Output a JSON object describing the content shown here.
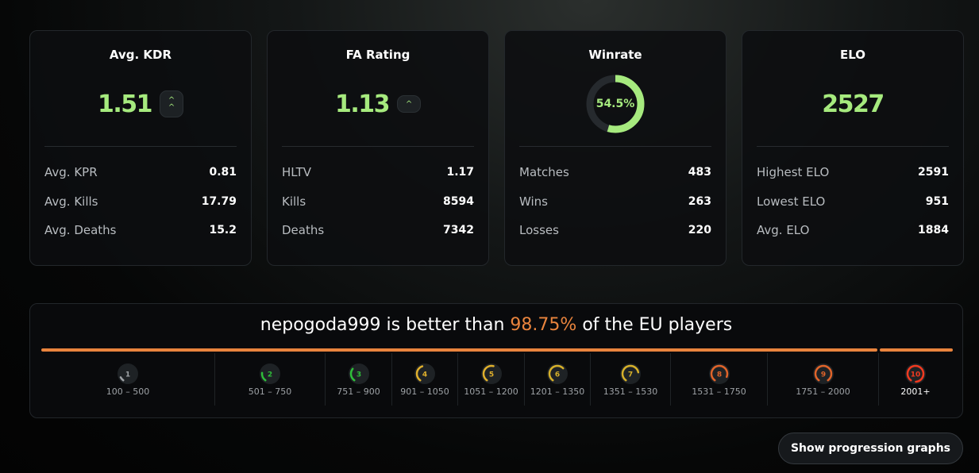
{
  "cards": [
    {
      "title": "Avg. KDR",
      "value": "1.51",
      "trend": "double-chevron-up-icon",
      "rows": [
        {
          "label": "Avg. KPR",
          "value": "0.81"
        },
        {
          "label": "Avg. Kills",
          "value": "17.79"
        },
        {
          "label": "Avg. Deaths",
          "value": "15.2"
        }
      ]
    },
    {
      "title": "FA Rating",
      "value": "1.13",
      "trend": "chevron-up-icon",
      "rows": [
        {
          "label": "HLTV",
          "value": "1.17"
        },
        {
          "label": "Kills",
          "value": "8594"
        },
        {
          "label": "Deaths",
          "value": "7342"
        }
      ]
    },
    {
      "title": "Winrate",
      "value": "54.5%",
      "winrate_percent": 54.5,
      "rows": [
        {
          "label": "Matches",
          "value": "483"
        },
        {
          "label": "Wins",
          "value": "263"
        },
        {
          "label": "Losses",
          "value": "220"
        }
      ]
    },
    {
      "title": "ELO",
      "value": "2527",
      "rows": [
        {
          "label": "Highest ELO",
          "value": "2591"
        },
        {
          "label": "Lowest ELO",
          "value": "951"
        },
        {
          "label": "Avg. ELO",
          "value": "1884"
        }
      ]
    }
  ],
  "ranking": {
    "player": "nepogoda999",
    "pre": "is better than",
    "percent": "98.75%",
    "post": "of the EU players",
    "accent": "#e9843d",
    "levels": [
      {
        "level": "1",
        "range": "100 – 500",
        "color": "#9ea2a6"
      },
      {
        "level": "2",
        "range": "501 – 750",
        "color": "#2fbf3a"
      },
      {
        "level": "3",
        "range": "751 – 900",
        "color": "#2fbf3a"
      },
      {
        "level": "4",
        "range": "901 – 1050",
        "color": "#e0b02c"
      },
      {
        "level": "5",
        "range": "1051 – 1200",
        "color": "#e0b02c"
      },
      {
        "level": "6",
        "range": "1201 – 1350",
        "color": "#d6b02a"
      },
      {
        "level": "7",
        "range": "1351 – 1530",
        "color": "#d6b02a"
      },
      {
        "level": "8",
        "range": "1531 – 1750",
        "color": "#e0642a"
      },
      {
        "level": "9",
        "range": "1751 – 2000",
        "color": "#e0642a"
      },
      {
        "level": "10",
        "range": "2001+",
        "color": "#f03a20"
      }
    ]
  },
  "button": {
    "label": "Show progression graphs"
  }
}
